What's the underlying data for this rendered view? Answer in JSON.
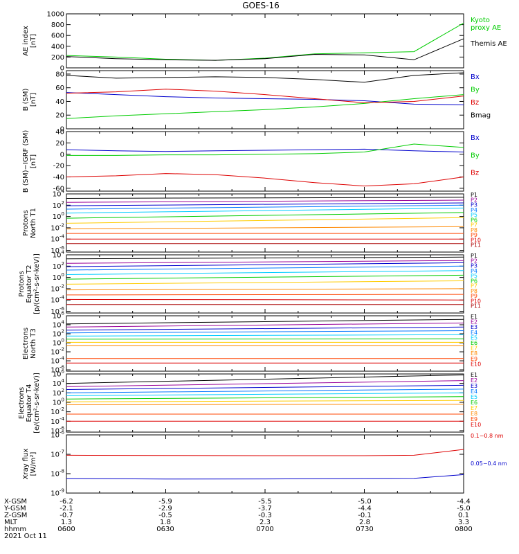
{
  "title": "GOES-16",
  "colors": {
    "black": "#000000",
    "blue": "#0000cc",
    "green": "#00cc00",
    "red": "#dd0000"
  },
  "chart_data": [
    {
      "type": "line",
      "ylabel": "AE index\n[nT]",
      "ylim": [
        0,
        1000
      ],
      "log": false,
      "ticks": [
        0,
        200,
        400,
        600,
        800,
        1000
      ],
      "x": [
        6.0,
        6.25,
        6.5,
        6.75,
        7.0,
        7.25,
        7.5,
        7.75,
        8.0
      ],
      "series": [
        {
          "name": "Kyoto\nproxy AE",
          "color": "#00cc00",
          "values": [
            230,
            200,
            160,
            140,
            180,
            260,
            280,
            300,
            830
          ]
        },
        {
          "name": "Themis AE",
          "color": "#000000",
          "values": [
            210,
            170,
            150,
            140,
            170,
            250,
            240,
            150,
            540
          ]
        }
      ]
    },
    {
      "type": "line",
      "ylabel": "B (SM)\n[nT]",
      "ylim": [
        0,
        85
      ],
      "log": false,
      "ticks": [
        0,
        20,
        40,
        60,
        80
      ],
      "x": [
        6.0,
        6.25,
        6.5,
        6.75,
        7.0,
        7.25,
        7.5,
        7.75,
        8.0
      ],
      "series": [
        {
          "name": "Bx",
          "color": "#0000cc",
          "values": [
            53,
            50,
            47,
            45,
            44,
            43,
            41,
            36,
            35
          ]
        },
        {
          "name": "By",
          "color": "#00cc00",
          "values": [
            15,
            19,
            22,
            25,
            28,
            32,
            37,
            44,
            50
          ]
        },
        {
          "name": "Bz",
          "color": "#dd0000",
          "values": [
            52,
            54,
            58,
            55,
            50,
            44,
            38,
            40,
            48
          ]
        },
        {
          "name": "Bmag",
          "color": "#000000",
          "values": [
            78,
            74,
            75,
            76,
            75,
            72,
            68,
            78,
            82
          ]
        }
      ]
    },
    {
      "type": "line",
      "ylabel": "B (SM)−IGRF (SM)\n[nT]",
      "ylim": [
        -65,
        40
      ],
      "log": false,
      "ticks": [
        -60,
        -40,
        -20,
        0,
        20,
        40
      ],
      "x": [
        6.0,
        6.25,
        6.5,
        6.75,
        7.0,
        7.25,
        7.5,
        7.75,
        8.0
      ],
      "series": [
        {
          "name": "Bx",
          "color": "#0000cc",
          "values": [
            8,
            6,
            5,
            6,
            7,
            8,
            9,
            6,
            4
          ]
        },
        {
          "name": "By",
          "color": "#00cc00",
          "values": [
            -2,
            -2,
            -1,
            -1,
            0,
            1,
            4,
            18,
            12
          ]
        },
        {
          "name": "Bz",
          "color": "#dd0000",
          "values": [
            -40,
            -38,
            -34,
            -36,
            -42,
            -50,
            -56,
            -52,
            -40
          ]
        }
      ]
    },
    {
      "type": "line",
      "ylabel": "Protons\nNorth T1",
      "ylim": [
        -6.3,
        4
      ],
      "log": true,
      "ticks": [
        4,
        2,
        0,
        -2,
        -4,
        -6
      ],
      "x": [
        6.0,
        8.0
      ],
      "series": [
        {
          "name": "P1",
          "color": "#000000",
          "values": [
            3.2,
            3.4
          ]
        },
        {
          "name": "P2",
          "color": "#990099",
          "values": [
            2.5,
            2.9
          ]
        },
        {
          "name": "P3",
          "color": "#0000cc",
          "values": [
            1.9,
            2.4
          ]
        },
        {
          "name": "P4",
          "color": "#0077ff",
          "values": [
            1.3,
            2.0
          ]
        },
        {
          "name": "P5",
          "color": "#00ccff",
          "values": [
            0.6,
            1.5
          ]
        },
        {
          "name": "P6",
          "color": "#00cc00",
          "values": [
            -0.3,
            0.7
          ]
        },
        {
          "name": "P7",
          "color": "#ffcc00",
          "values": [
            -1.2,
            -0.2
          ]
        },
        {
          "name": "P8",
          "color": "#ff8800",
          "values": [
            -2.2,
            -1.8
          ]
        },
        {
          "name": "P9",
          "color": "#ff4400",
          "values": [
            -3.0,
            -3.0
          ]
        },
        {
          "name": "P10",
          "color": "#dd0000",
          "values": [
            -4.0,
            -4.0
          ]
        },
        {
          "name": "P11",
          "color": "#aa0000",
          "values": [
            -4.8,
            -4.8
          ]
        }
      ]
    },
    {
      "type": "line",
      "ylabel": "Protons\nEquator T2\n[p/(cm²-s-sr-keV)]",
      "ylim": [
        -6.3,
        4
      ],
      "log": true,
      "ticks": [
        4,
        2,
        0,
        -2,
        -4,
        -6
      ],
      "x": [
        6.0,
        8.0
      ],
      "series": [
        {
          "name": "P1",
          "color": "#000000",
          "values": [
            3.3,
            3.6
          ]
        },
        {
          "name": "P2",
          "color": "#990099",
          "values": [
            2.5,
            3.0
          ]
        },
        {
          "name": "P3",
          "color": "#0000cc",
          "values": [
            1.9,
            2.6
          ]
        },
        {
          "name": "P4",
          "color": "#0077ff",
          "values": [
            1.3,
            2.0
          ]
        },
        {
          "name": "P5",
          "color": "#00ccff",
          "values": [
            0.5,
            1.2
          ]
        },
        {
          "name": "P6",
          "color": "#00cc00",
          "values": [
            -0.3,
            0.4
          ]
        },
        {
          "name": "P7",
          "color": "#ffcc00",
          "values": [
            -1.2,
            -0.6
          ]
        },
        {
          "name": "P8",
          "color": "#ff8800",
          "values": [
            -2.2,
            -2.0
          ]
        },
        {
          "name": "P9",
          "color": "#ff4400",
          "values": [
            -3.1,
            -3.0
          ]
        },
        {
          "name": "P10",
          "color": "#dd0000",
          "values": [
            -3.9,
            -4.0
          ]
        },
        {
          "name": "P11",
          "color": "#aa0000",
          "values": [
            -4.8,
            -4.8
          ]
        }
      ]
    },
    {
      "type": "line",
      "ylabel": "Electrons\nNorth T3",
      "ylim": [
        -6.3,
        6
      ],
      "log": true,
      "ticks": [
        6,
        4,
        2,
        0,
        -2,
        -4,
        -6
      ],
      "x": [
        6.0,
        8.0
      ],
      "series": [
        {
          "name": "E1",
          "color": "#000000",
          "values": [
            4.2,
            5.2
          ]
        },
        {
          "name": "E2",
          "color": "#990099",
          "values": [
            3.5,
            4.4
          ]
        },
        {
          "name": "E3",
          "color": "#0000cc",
          "values": [
            2.8,
            3.5
          ]
        },
        {
          "name": "E4",
          "color": "#0077ff",
          "values": [
            2.2,
            2.7
          ]
        },
        {
          "name": "E5",
          "color": "#00ccff",
          "values": [
            1.5,
            1.8
          ]
        },
        {
          "name": "E6",
          "color": "#00cc00",
          "values": [
            0.8,
            0.9
          ]
        },
        {
          "name": "E7",
          "color": "#ffcc00",
          "values": [
            0.1,
            0.1
          ]
        },
        {
          "name": "E8",
          "color": "#ff8800",
          "values": [
            -0.6,
            -0.6
          ]
        },
        {
          "name": "E9",
          "color": "#ff4400",
          "values": [
            -3.5,
            -3.5
          ]
        },
        {
          "name": "E10",
          "color": "#dd0000",
          "values": [
            -4.5,
            -4.5
          ]
        }
      ]
    },
    {
      "type": "line",
      "ylabel": "Electrons\nEquator T4\n[e/(cm²-s-sr-keV)]",
      "ylim": [
        -6.3,
        6
      ],
      "log": true,
      "ticks": [
        6,
        4,
        2,
        0,
        -2,
        -4,
        -6
      ],
      "x": [
        6.0,
        8.0
      ],
      "series": [
        {
          "name": "E1",
          "color": "#000000",
          "values": [
            4.0,
            5.8
          ]
        },
        {
          "name": "E2",
          "color": "#990099",
          "values": [
            3.3,
            4.6
          ]
        },
        {
          "name": "E3",
          "color": "#0000cc",
          "values": [
            2.7,
            3.6
          ]
        },
        {
          "name": "E4",
          "color": "#0077ff",
          "values": [
            2.0,
            2.8
          ]
        },
        {
          "name": "E5",
          "color": "#00ccff",
          "values": [
            1.4,
            2.0
          ]
        },
        {
          "name": "E6",
          "color": "#00cc00",
          "values": [
            0.7,
            1.2
          ]
        },
        {
          "name": "E7",
          "color": "#ffcc00",
          "values": [
            0.1,
            0.4
          ]
        },
        {
          "name": "E8",
          "color": "#ff8800",
          "values": [
            -0.5,
            -0.4
          ]
        },
        {
          "name": "E9",
          "color": "#ff4400",
          "values": [
            -2.5,
            -2.5
          ]
        },
        {
          "name": "E10",
          "color": "#dd0000",
          "values": [
            -4.0,
            -4.0
          ]
        }
      ]
    },
    {
      "type": "line",
      "ylabel": "Xray flux\n[W/m²]",
      "ylim": [
        -9,
        -6
      ],
      "log": true,
      "ticks": [
        -6,
        -7,
        -8,
        -9
      ],
      "x": [
        6.0,
        6.5,
        7.0,
        7.5,
        7.75,
        8.0
      ],
      "series": [
        {
          "name": "0.1−0.8 nm",
          "color": "#dd0000",
          "values": [
            -7.05,
            -7.06,
            -7.07,
            -7.07,
            -7.05,
            -6.75
          ]
        },
        {
          "name": "0.05−0.4 nm",
          "color": "#0000cc",
          "values": [
            -8.25,
            -8.28,
            -8.27,
            -8.25,
            -8.24,
            -8.05
          ]
        }
      ]
    }
  ],
  "footer": {
    "rows": [
      {
        "label": "X-GSM",
        "values": [
          "-6.2",
          "-5.9",
          "-5.5",
          "-5.0",
          "-4.4"
        ]
      },
      {
        "label": "Y-GSM",
        "values": [
          "-2.1",
          "-2.9",
          "-3.7",
          "-4.4",
          "-5.0"
        ]
      },
      {
        "label": "Z-GSM",
        "values": [
          "-0.7",
          "-0.5",
          "-0.3",
          "-0.1",
          "0.1"
        ]
      },
      {
        "label": "MLT",
        "values": [
          "1.3",
          "1.8",
          "2.3",
          "2.8",
          "3.3"
        ]
      },
      {
        "label": "hhmm",
        "values": [
          "0600",
          "0630",
          "0700",
          "0730",
          "0800"
        ]
      }
    ],
    "date": "2021 Oct 11"
  }
}
